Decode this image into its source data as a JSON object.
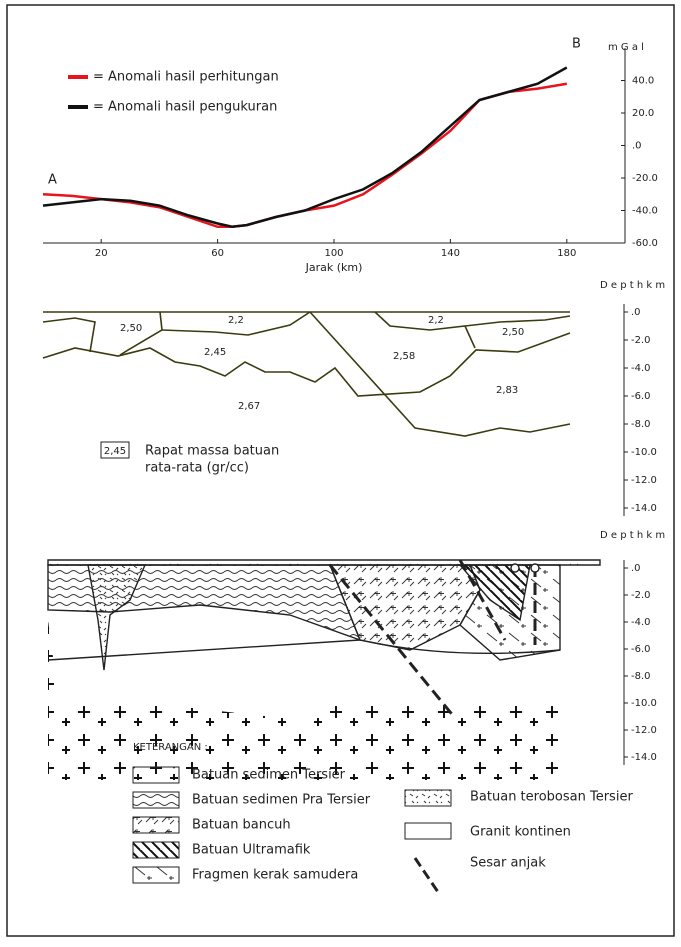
{
  "chart_data": {
    "type": "line",
    "y_unit_label": "m G a l",
    "x_label": "Jarak (km)",
    "annotations": [
      "A",
      "B"
    ],
    "x": [
      0,
      10,
      20,
      30,
      40,
      50,
      60,
      65,
      70,
      80,
      90,
      100,
      110,
      120,
      130,
      140,
      150,
      160,
      170,
      180
    ],
    "series": [
      {
        "name": "= Anomali hasil perhitungan",
        "color": "#e8141b",
        "values": [
          -30,
          -31,
          -33,
          -35,
          -38,
          -44,
          -50,
          -50,
          -49,
          -44,
          -40,
          -37,
          -30,
          -18,
          -5,
          9,
          28,
          33,
          35,
          38
        ]
      },
      {
        "name": "= Anomali hasil pengukuran",
        "color": "#111111",
        "values": [
          -37,
          -35,
          -33,
          -34,
          -37,
          -43,
          -48,
          -50,
          -49,
          -44,
          -40,
          -33,
          -27,
          -17,
          -4,
          12,
          28,
          33,
          38,
          48
        ]
      }
    ],
    "xlim": [
      0,
      200
    ],
    "xticks": [
      20,
      60,
      100,
      140,
      180
    ],
    "ylim": [
      -60,
      60
    ],
    "yticks": [
      {
        "value": 40,
        "label": "40.0"
      },
      {
        "value": 20,
        "label": "20.0"
      },
      {
        "value": 0,
        "label": ".0"
      },
      {
        "value": -20,
        "label": "-20.0"
      },
      {
        "value": -40,
        "label": "-40.0"
      },
      {
        "value": -60,
        "label": "-60.0"
      }
    ]
  },
  "density_section": {
    "depth_title": "D e p t h   k m",
    "depth_ticks": [
      ".0",
      "-2.0",
      "-4.0",
      "-6.0",
      "-8.0",
      "-10.0",
      "-12.0",
      "-14.0"
    ],
    "labels": [
      "2,50",
      "2,2",
      "2,45",
      "2,58",
      "2,2",
      "2,50",
      "2,67",
      "2,83"
    ],
    "legend_box": "2,45",
    "legend_text": [
      "Rapat massa batuan",
      "rata-rata (gr/cc)"
    ]
  },
  "geology_section": {
    "depth_title": "D e p t h  k m",
    "depth_ticks": [
      ".0",
      "-2.0",
      "-4.0",
      "-6.0",
      "-8.0",
      "-10.0",
      "-12.0",
      "-14.0"
    ],
    "legend_title": "KETERANGAN :",
    "legend": [
      "Batuan sedimen Tersier",
      "Batuan sedimen Pra Tersier",
      "Batuan bancuh",
      "Batuan Ultramafik",
      "Fragmen kerak samudera",
      "Batuan terobosan Tersier",
      "Granit kontinen",
      "Sesar anjak"
    ]
  }
}
